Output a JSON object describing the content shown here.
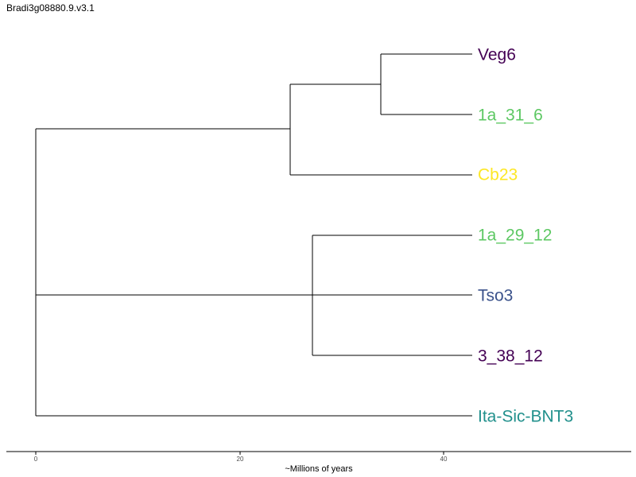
{
  "title": "Bradi3g08880.9.v3.1",
  "axis": {
    "label": "~Millions of years",
    "ticks": [
      "0",
      "20",
      "40"
    ]
  },
  "tips": [
    {
      "id": "veg6",
      "label": "Veg6",
      "color": "#440154"
    },
    {
      "id": "1a_31_6",
      "label": "1a_31_6",
      "color": "#5dc863"
    },
    {
      "id": "cb23",
      "label": "Cb23",
      "color": "#fde725"
    },
    {
      "id": "1a_29_12",
      "label": "1a_29_12",
      "color": "#5dc863"
    },
    {
      "id": "tso3",
      "label": "Tso3",
      "color": "#3b528b"
    },
    {
      "id": "3_38_12",
      "label": "3_38_12",
      "color": "#440154"
    },
    {
      "id": "ita-sic-bnt3",
      "label": "Ita-Sic-BNT3",
      "color": "#21908c"
    }
  ]
}
